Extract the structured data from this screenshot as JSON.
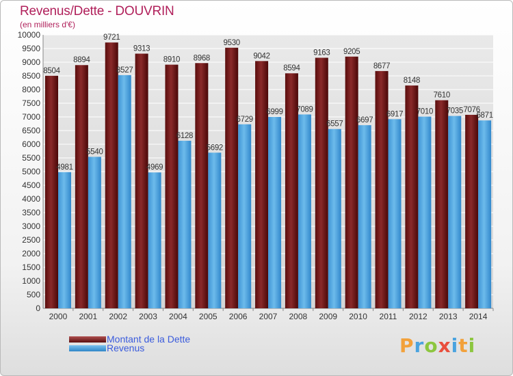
{
  "title": "Revenus/Dette - DOUVRIN",
  "subtitle": "(en milliers d'€)",
  "logo_text": "Proxiti",
  "colors": {
    "dette": "#7a1f1f",
    "revenus": "#4aa3df",
    "title": "#b01f5a",
    "legend_text": "#3a5bdc"
  },
  "chart_data": {
    "type": "bar",
    "title": "Revenus/Dette - DOUVRIN",
    "ylabel": "(en milliers d'€)",
    "xlabel": "",
    "ylim": [
      0,
      10000
    ],
    "yticks": [
      0,
      500,
      1000,
      1500,
      2000,
      2500,
      3000,
      3500,
      4000,
      4500,
      5000,
      5500,
      6000,
      6500,
      7000,
      7500,
      8000,
      8500,
      9000,
      9500,
      10000
    ],
    "categories": [
      "2000",
      "2001",
      "2002",
      "2003",
      "2004",
      "2005",
      "2006",
      "2007",
      "2008",
      "2009",
      "2010",
      "2011",
      "2012",
      "2013",
      "2014"
    ],
    "series": [
      {
        "name": "Montant de la Dette",
        "color": "#7a1f1f",
        "values": [
          8504,
          8894,
          9721,
          9313,
          8910,
          8968,
          9530,
          9042,
          8594,
          9163,
          9205,
          8677,
          8148,
          7610,
          7076
        ]
      },
      {
        "name": "Revenus",
        "color": "#4aa3df",
        "values": [
          4981,
          5540,
          8527,
          4969,
          6128,
          5692,
          6729,
          6999,
          7089,
          6557,
          6697,
          6917,
          7010,
          7035,
          6871
        ]
      }
    ],
    "legend": "bottom-left",
    "grid": true
  }
}
